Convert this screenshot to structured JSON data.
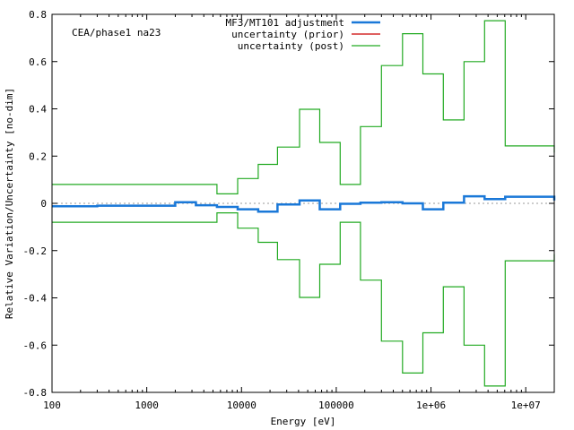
{
  "chart_data": {
    "type": "line",
    "annotation": "CEA/phase1 na23",
    "xlabel": "Energy [eV]",
    "ylabel": "Relative Variation/Uncertainty [no-dim]",
    "x_scale": "log",
    "xlim": [
      100,
      20000000
    ],
    "ylim": [
      -0.8,
      0.8
    ],
    "x_ticks": [
      {
        "value": 100,
        "label": "100"
      },
      {
        "value": 1000,
        "label": "1000"
      },
      {
        "value": 10000,
        "label": "10000"
      },
      {
        "value": 100000,
        "label": "100000"
      },
      {
        "value": 1000000,
        "label": "1e+06"
      },
      {
        "value": 10000000,
        "label": "1e+07"
      }
    ],
    "y_ticks": [
      {
        "value": 0.8,
        "label": "0.8"
      },
      {
        "value": 0.6,
        "label": "0.6"
      },
      {
        "value": 0.4,
        "label": "0.4"
      },
      {
        "value": 0.2,
        "label": "0.2"
      },
      {
        "value": 0,
        "label": "0"
      },
      {
        "value": -0.2,
        "label": "-0.2"
      },
      {
        "value": -0.4,
        "label": "-0.4"
      },
      {
        "value": -0.6,
        "label": "-0.6"
      },
      {
        "value": -0.8,
        "label": "-0.8"
      }
    ],
    "legend_position": "top-right",
    "zero_line": true,
    "series": [
      {
        "name": "MF3/MT101 adjustment",
        "color": "#1a78d8",
        "style": "step",
        "edges": [
          100,
          300,
          2000,
          3300,
          5500,
          9100,
          15000,
          24000,
          41000,
          67000,
          110000,
          180000,
          300000,
          500000,
          820000,
          1350000,
          2230000,
          3680000,
          6070000,
          20000000
        ],
        "values": [
          -0.012,
          -0.01,
          0.005,
          -0.008,
          -0.015,
          -0.025,
          -0.035,
          -0.005,
          0.012,
          -0.025,
          -0.002,
          0.003,
          0.005,
          0.0,
          -0.025,
          0.003,
          0.03,
          0.018,
          0.028,
          0.012
        ]
      },
      {
        "name": "uncertainty (prior)",
        "color": "#cc0000",
        "style": "step",
        "edges": [],
        "values": []
      },
      {
        "name": "uncertainty (post)",
        "color": "#22aa22",
        "style": "step-symmetric",
        "edges": [
          100,
          5500,
          9100,
          15000,
          24000,
          41000,
          67000,
          110000,
          180000,
          300000,
          500000,
          820000,
          1350000,
          2230000,
          3680000,
          6070000,
          20000000
        ],
        "values": [
          0.08,
          0.04,
          0.105,
          0.165,
          0.238,
          0.398,
          0.258,
          0.08,
          0.325,
          0.583,
          0.718,
          0.548,
          0.353,
          0.6,
          0.773,
          0.243,
          0.215
        ]
      }
    ]
  }
}
